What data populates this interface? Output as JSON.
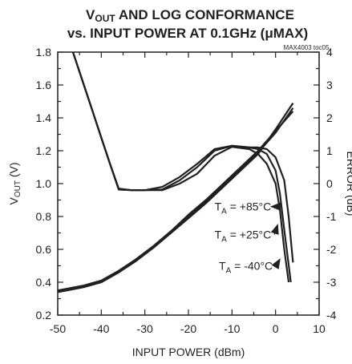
{
  "chart_data": {
    "type": "line",
    "title_line1_pre": "V",
    "title_line1_sub": "OUT",
    "title_line1_post": " AND LOG CONFORMANCE",
    "title_line2": "vs. INPUT POWER AT 0.1GHz (μMAX)",
    "tag": "MAX4003 toc05",
    "xlabel": "INPUT POWER (dBm)",
    "ylabel_pre": "V",
    "ylabel_sub": "OUT",
    "ylabel_post": " (V)",
    "y2label": "ERROR (dB)",
    "xlim": [
      -50,
      10
    ],
    "ylim": [
      0.2,
      1.8
    ],
    "y2lim": [
      -4,
      4
    ],
    "x_ticks": [
      "-50",
      "-40",
      "-30",
      "-20",
      "-10",
      "0",
      "10"
    ],
    "y_ticks": [
      "0.2",
      "0.4",
      "0.6",
      "0.8",
      "1.0",
      "1.2",
      "1.4",
      "1.6",
      "1.8"
    ],
    "y2_ticks": [
      "-4",
      "-3",
      "-2",
      "-1",
      "0",
      "1",
      "2",
      "3",
      "4"
    ],
    "vout_series": [
      {
        "x": [
          -52,
          -48,
          -44,
          -40,
          -36,
          -32,
          -28,
          -24,
          -20,
          -16,
          -12,
          -8,
          -4,
          0,
          4
        ],
        "y": [
          0.33,
          0.35,
          0.37,
          0.4,
          0.46,
          0.53,
          0.61,
          0.7,
          0.79,
          0.88,
          0.98,
          1.08,
          1.18,
          1.33,
          1.49
        ]
      },
      {
        "x": [
          -52,
          -48,
          -44,
          -40,
          -36,
          -32,
          -28,
          -24,
          -20,
          -16,
          -12,
          -8,
          -4,
          0,
          4
        ],
        "y": [
          0.34,
          0.35,
          0.37,
          0.4,
          0.46,
          0.54,
          0.62,
          0.71,
          0.8,
          0.89,
          0.99,
          1.09,
          1.19,
          1.31,
          1.46
        ]
      },
      {
        "x": [
          -52,
          -48,
          -44,
          -40,
          -36,
          -32,
          -28,
          -24,
          -20,
          -16,
          -12,
          -8,
          -4,
          0,
          4
        ],
        "y": [
          0.34,
          0.36,
          0.38,
          0.41,
          0.47,
          0.54,
          0.62,
          0.71,
          0.81,
          0.9,
          1.0,
          1.1,
          1.2,
          1.32,
          1.44
        ]
      }
    ],
    "error_series": [
      {
        "x": [
          -46.5,
          -44,
          -42,
          -40,
          -38,
          -36,
          -33,
          -30,
          -26,
          -22,
          -18,
          -14,
          -10,
          -6,
          -4,
          -2,
          0,
          1,
          2,
          3
        ],
        "y": [
          4.0,
          3.0,
          2.2,
          1.4,
          0.6,
          -0.18,
          -0.2,
          -0.2,
          -0.2,
          0.0,
          0.3,
          0.85,
          1.12,
          1.05,
          0.9,
          0.6,
          0.0,
          -0.8,
          -2.0,
          -3.0
        ]
      },
      {
        "x": [
          -46.5,
          -44,
          -42,
          -40,
          -38,
          -36,
          -33,
          -30,
          -26,
          -22,
          -18,
          -14,
          -10,
          -6,
          -4,
          -2,
          0,
          1,
          2,
          3.5
        ],
        "y": [
          4.0,
          3.0,
          2.2,
          1.4,
          0.6,
          -0.18,
          -0.2,
          -0.2,
          -0.18,
          0.1,
          0.5,
          1.0,
          1.15,
          1.1,
          1.05,
          0.9,
          0.4,
          -0.3,
          -1.4,
          -3.0
        ]
      },
      {
        "x": [
          -46.5,
          -44,
          -42,
          -40,
          -38,
          -36,
          -33,
          -30,
          -26,
          -22,
          -18,
          -14,
          -10,
          -6,
          -4,
          -2,
          0,
          2,
          3,
          4
        ],
        "y": [
          4.0,
          3.0,
          2.2,
          1.4,
          0.6,
          -0.15,
          -0.2,
          -0.2,
          -0.1,
          0.2,
          0.6,
          1.05,
          1.15,
          1.1,
          1.1,
          1.05,
          0.8,
          0.1,
          -1.0,
          -2.4
        ]
      }
    ],
    "annotations": [
      {
        "pre": "T",
        "sub": "A",
        "post": " = +85°C",
        "x": -14,
        "y": -0.7,
        "arrow_to": [
          -1,
          -0.7
        ]
      },
      {
        "pre": "T",
        "sub": "A",
        "post": " = +25°C",
        "x": -14,
        "y": -1.55,
        "arrow_to": [
          0.5,
          -1.25
        ]
      },
      {
        "pre": "T",
        "sub": "A",
        "post": " = -40°C",
        "x": -13,
        "y": -2.5,
        "arrow_to": [
          1,
          -2.3
        ]
      }
    ]
  }
}
